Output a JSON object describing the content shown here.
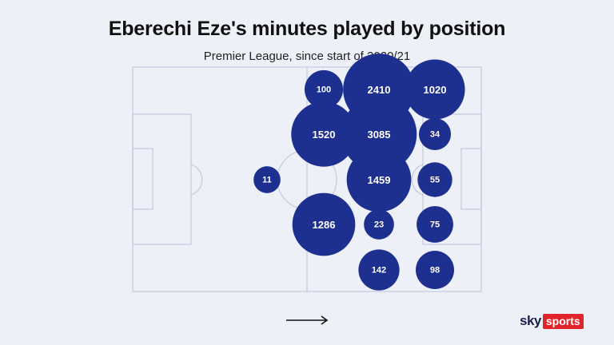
{
  "title": "Eberechi Eze's minutes played by position",
  "subtitle": "Premier League, since start of 2020/21",
  "colors": {
    "bubble": "#1d2f8f",
    "pitch_line": "#c6cbe0",
    "background": "#eef0f8"
  },
  "positions": [
    {
      "label": "100"
    },
    {
      "label": "2410"
    },
    {
      "label": "1020"
    },
    {
      "label": "1520"
    },
    {
      "label": "3085"
    },
    {
      "label": "34"
    },
    {
      "label": "11"
    },
    {
      "label": "1459"
    },
    {
      "label": "55"
    },
    {
      "label": "1286"
    },
    {
      "label": "23"
    },
    {
      "label": "75"
    },
    {
      "label": "142"
    },
    {
      "label": "98"
    }
  ],
  "direction_icon": "arrow-right-icon",
  "logo": {
    "sky": "sky",
    "sports": "sports"
  }
}
